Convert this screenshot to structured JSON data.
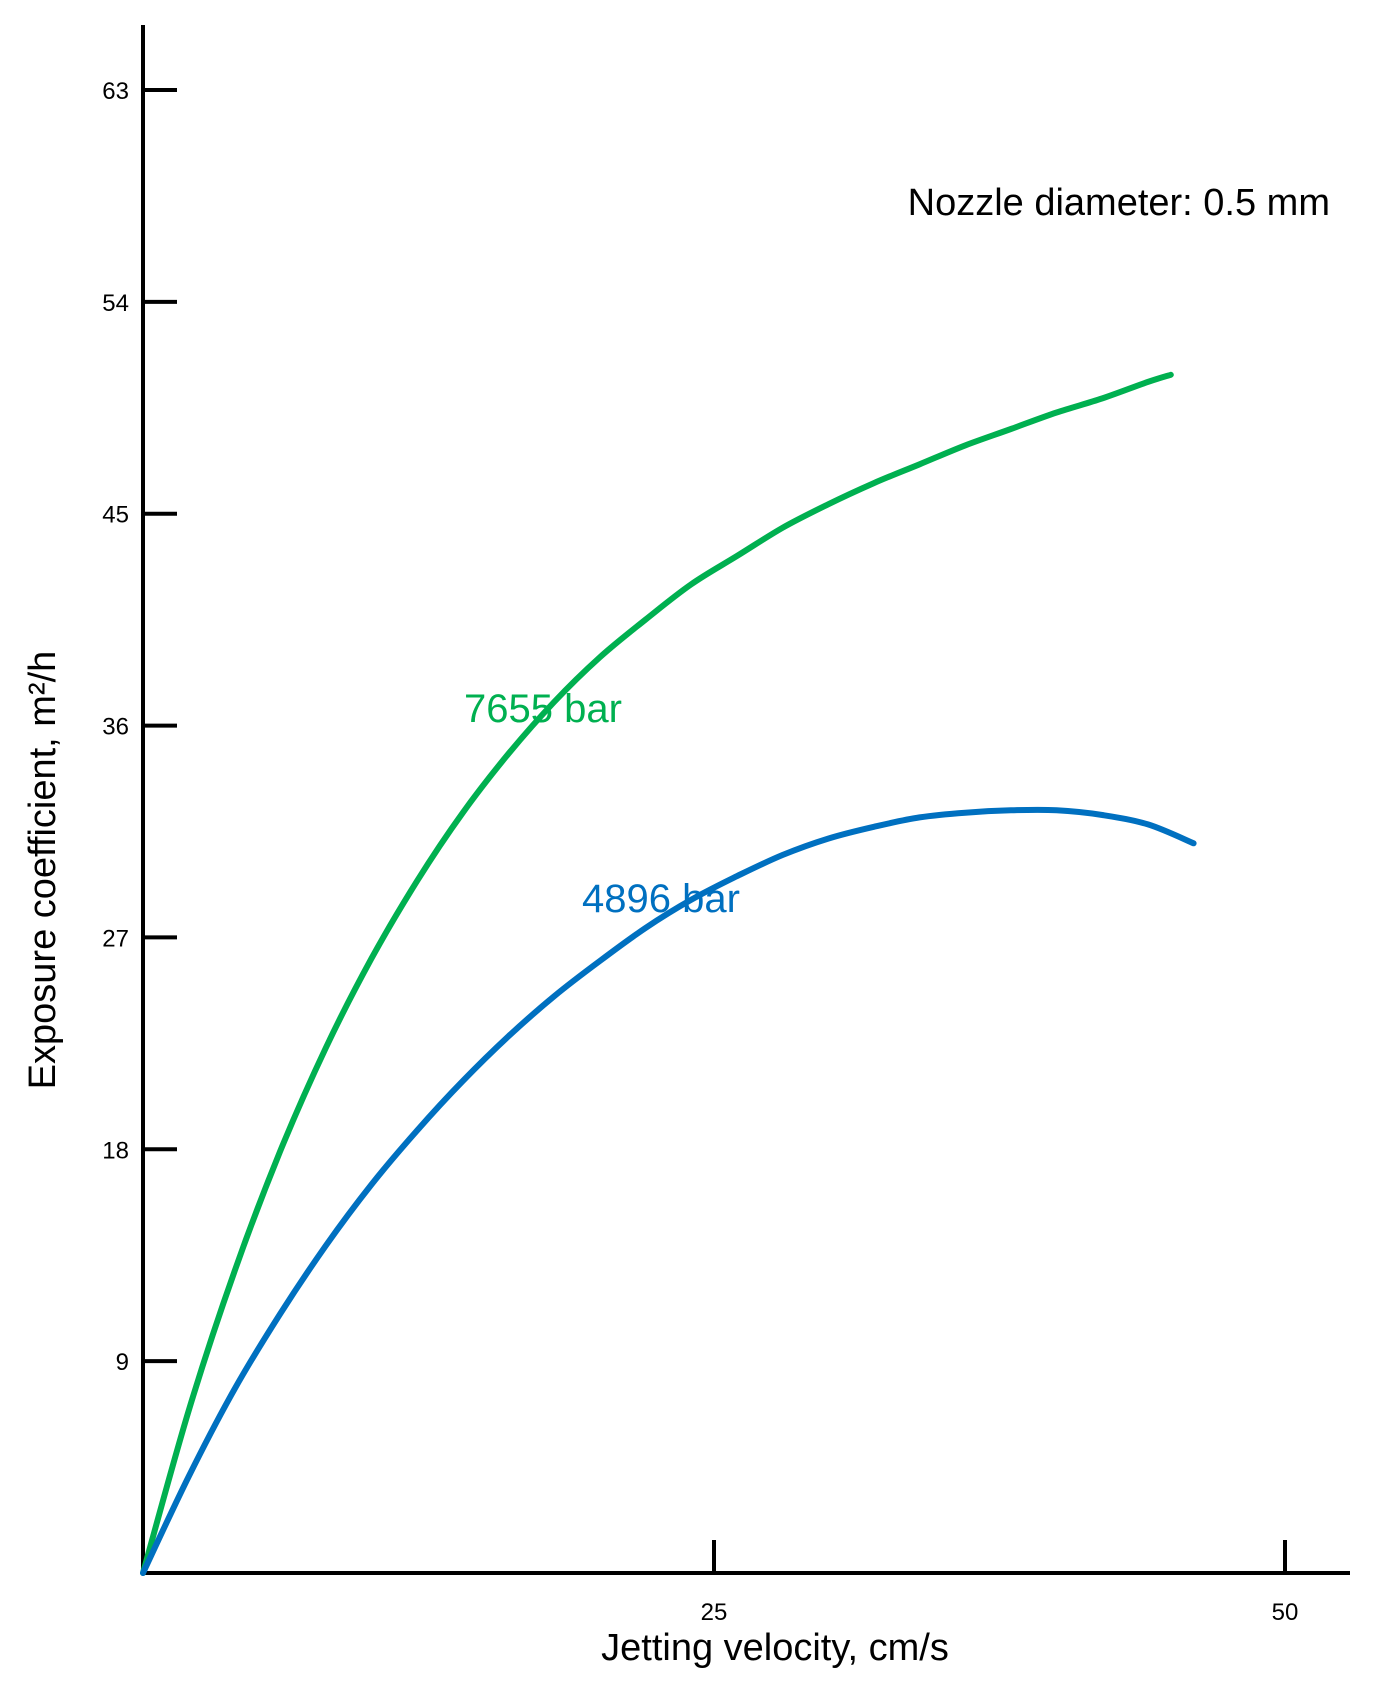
{
  "chart_data": {
    "type": "line",
    "title": "",
    "xlabel": "Jetting velocity, cm/s",
    "ylabel": "Exposure coefficient, m²/h",
    "xlim": [
      0,
      52
    ],
    "ylim": [
      0,
      66
    ],
    "xticks": [
      25,
      50
    ],
    "yticks": [
      9,
      18,
      27,
      36,
      45,
      54,
      63
    ],
    "grid": false,
    "legend": "none",
    "annotation": "Nozzle diameter: 0.5 mm",
    "series": [
      {
        "name": "7655 bar",
        "color": "#00B050",
        "x": [
          0,
          2,
          4,
          6,
          8,
          10,
          12,
          14,
          16,
          18,
          20,
          22,
          24,
          26,
          28,
          30,
          32,
          34,
          36,
          38,
          40,
          42,
          44,
          45
        ],
        "y": [
          0,
          6.9,
          12.8,
          17.9,
          22.3,
          26.1,
          29.4,
          32.3,
          34.8,
          37.0,
          38.9,
          40.5,
          42.0,
          43.2,
          44.4,
          45.4,
          46.3,
          47.1,
          47.9,
          48.6,
          49.3,
          49.9,
          50.6,
          50.9
        ]
      },
      {
        "name": "4896 bar",
        "color": "#0070C0",
        "x": [
          0,
          2,
          4,
          6,
          8,
          10,
          12,
          14,
          16,
          18,
          20,
          22,
          24,
          26,
          28,
          30,
          32,
          34,
          36,
          38,
          40,
          42,
          44,
          46
        ],
        "y": [
          0,
          4.1,
          7.8,
          11.0,
          13.9,
          16.5,
          18.8,
          20.9,
          22.8,
          24.5,
          26.0,
          27.4,
          28.6,
          29.6,
          30.5,
          31.2,
          31.7,
          32.1,
          32.3,
          32.4,
          32.4,
          32.2,
          31.8,
          31.0
        ]
      }
    ]
  }
}
